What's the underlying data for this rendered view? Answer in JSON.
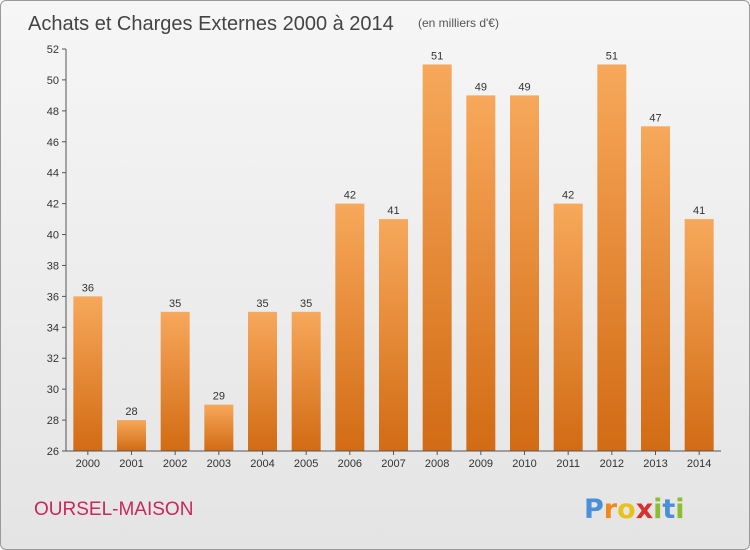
{
  "chart_data": {
    "type": "bar",
    "title": "Achats et Charges Externes 2000 à 2014",
    "subtitle": "(en milliers d'€)",
    "categories": [
      "2000",
      "2001",
      "2002",
      "2003",
      "2004",
      "2005",
      "2006",
      "2007",
      "2008",
      "2009",
      "2010",
      "2011",
      "2012",
      "2013",
      "2014"
    ],
    "series": [
      {
        "values": [
          36,
          28,
          35,
          29,
          35,
          35,
          42,
          41,
          51,
          49,
          49,
          42,
          51,
          47,
          41
        ]
      }
    ],
    "data_labels": [
      "36",
      "28",
      "35",
      "29",
      "35",
      "35",
      "42",
      "41",
      "51",
      "49",
      "49",
      "42",
      "51",
      "47",
      "41"
    ],
    "yticks": [
      "26",
      "28",
      "30",
      "32",
      "34",
      "36",
      "38",
      "40",
      "42",
      "44",
      "46",
      "48",
      "50",
      "52"
    ],
    "ylim": [
      26,
      52
    ],
    "xlabel": "",
    "ylabel": "",
    "grid": false,
    "legend": "none",
    "colors": {
      "bar_top": "#f7a85a",
      "bar_bottom": "#d26b14",
      "title": "#444444",
      "commune": "#c8285a"
    }
  },
  "footer": {
    "commune": "OURSEL-MAISON",
    "logo": "Proxiti"
  },
  "logo_letters": [
    {
      "ch": "P",
      "color": "#4a90d9"
    },
    {
      "ch": "r",
      "color": "#ef8a1a"
    },
    {
      "ch": "o",
      "color": "#e8c21a"
    },
    {
      "ch": "x",
      "color": "#d8312e"
    },
    {
      "ch": "i",
      "color": "#8bbf2e"
    },
    {
      "ch": "t",
      "color": "#4a90d9"
    },
    {
      "ch": "i",
      "color": "#8bbf2e"
    }
  ]
}
